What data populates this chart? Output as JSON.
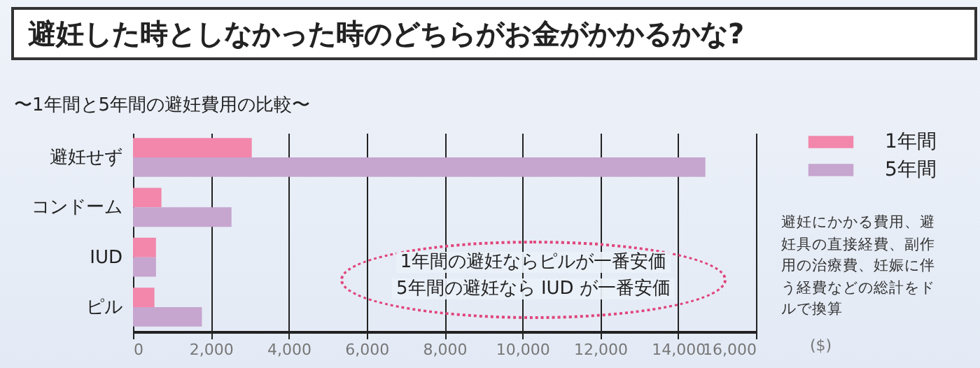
{
  "chart_data": {
    "type": "bar",
    "orientation": "horizontal",
    "title": "避妊した時としなかった時のどちらがお金がかかるかな?",
    "subtitle": "〜1年間と5年間の避妊費用の比較〜",
    "xlabel": "($)",
    "categories": [
      "避妊せず",
      "コンドーム",
      "IUD",
      "ピル"
    ],
    "series": [
      {
        "name": "1年間",
        "color": "#f287ab",
        "values": [
          3050,
          730,
          590,
          550
        ]
      },
      {
        "name": "5年間",
        "color": "#c6a5cf",
        "values": [
          14700,
          2530,
          590,
          1770
        ]
      }
    ],
    "xlim": [
      0,
      16000
    ],
    "xticks": [
      0,
      {
        "value": 2000,
        "label": "2,000"
      },
      {
        "value": 4000,
        "label": "4,000"
      },
      {
        "value": 6000,
        "label": "6,000"
      },
      {
        "value": 8000,
        "label": "8,000"
      },
      {
        "value": 10000,
        "label": "10,000"
      },
      {
        "value": 12000,
        "label": "12,000"
      },
      {
        "value": 14000,
        "label": "14,000"
      },
      {
        "value": 16000,
        "label": "16,000"
      }
    ],
    "grid": "x",
    "legend": "top right",
    "annotations": [
      "1年間の避妊ならピルが一番安価",
      "5年間の避妊なら IUD が一番安価",
      "避妊にかかる費用、避妊具の直接経費、副作用の治療費、妊娠に伴う経費などの総計をドルで換算"
    ]
  }
}
